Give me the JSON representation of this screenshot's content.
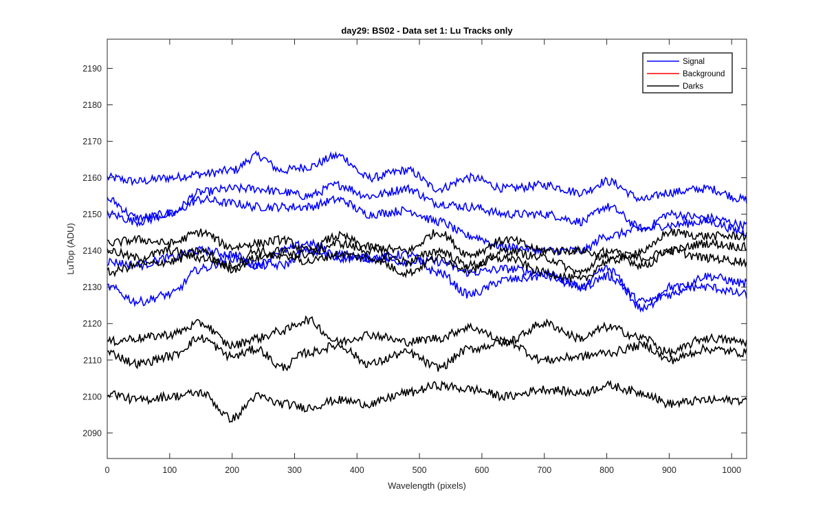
{
  "chart_data": {
    "type": "line",
    "title": "day29: BS02 - Data set 1: Lu Tracks only",
    "xlabel": "Wavelength (pixels)",
    "ylabel": "LuTop (ADU)",
    "xlim": [
      0,
      1024
    ],
    "ylim": [
      2083,
      2198
    ],
    "xticks": [
      0,
      100,
      200,
      300,
      400,
      500,
      600,
      700,
      800,
      900,
      1000
    ],
    "yticks": [
      2090,
      2100,
      2110,
      2120,
      2130,
      2140,
      2150,
      2160,
      2170,
      2180,
      2190
    ],
    "grid": false,
    "legend_position": "top-right",
    "legend": [
      {
        "label": "Signal",
        "color": "#0000ff"
      },
      {
        "label": "Background",
        "color": "#ff0000"
      },
      {
        "label": "Darks",
        "color": "#000000"
      }
    ],
    "series": [
      {
        "group": "Signal",
        "color": "#0000ff",
        "x": [
          0,
          50,
          100,
          150,
          200,
          240,
          280,
          320,
          370,
          420,
          480,
          530,
          580,
          640,
          700,
          760,
          800,
          860,
          900,
          960,
          1024
        ],
        "y": [
          2160,
          2159,
          2160,
          2161,
          2162,
          2166,
          2162,
          2163,
          2166,
          2160,
          2162,
          2157,
          2160,
          2157,
          2158,
          2156,
          2159,
          2154,
          2156,
          2157,
          2154
        ]
      },
      {
        "group": "Signal",
        "color": "#0000ff",
        "x": [
          0,
          50,
          100,
          150,
          200,
          240,
          280,
          320,
          370,
          420,
          480,
          530,
          580,
          640,
          700,
          760,
          800,
          860,
          900,
          960,
          1024
        ],
        "y": [
          2154,
          2149,
          2150,
          2156,
          2157,
          2157,
          2156,
          2155,
          2158,
          2155,
          2157,
          2153,
          2152,
          2150,
          2150,
          2148,
          2152,
          2146,
          2150,
          2149,
          2147
        ]
      },
      {
        "group": "Signal",
        "color": "#0000ff",
        "x": [
          0,
          50,
          100,
          150,
          200,
          240,
          280,
          320,
          370,
          420,
          480,
          530,
          580,
          640,
          700,
          760,
          800,
          860,
          900,
          960,
          1024
        ],
        "y": [
          2150,
          2148,
          2150,
          2154,
          2153,
          2152,
          2152,
          2152,
          2154,
          2150,
          2151,
          2148,
          2144,
          2141,
          2140,
          2140,
          2144,
          2146,
          2147,
          2148,
          2145
        ]
      },
      {
        "group": "Signal",
        "color": "#0000ff",
        "x": [
          0,
          50,
          100,
          150,
          200,
          240,
          280,
          320,
          370,
          420,
          480,
          530,
          580,
          640,
          700,
          760,
          800,
          860,
          900,
          960,
          1024
        ],
        "y": [
          2137,
          2136,
          2138,
          2140,
          2139,
          2136,
          2140,
          2142,
          2139,
          2138,
          2137,
          2137,
          2134,
          2135,
          2134,
          2130,
          2133,
          2126,
          2128,
          2133,
          2131
        ]
      },
      {
        "group": "Signal",
        "color": "#0000ff",
        "x": [
          0,
          50,
          100,
          150,
          200,
          240,
          280,
          320,
          370,
          420,
          480,
          530,
          580,
          640,
          700,
          760,
          800,
          860,
          900,
          960,
          1024
        ],
        "y": [
          2130,
          2126,
          2128,
          2135,
          2138,
          2136,
          2136,
          2140,
          2138,
          2138,
          2139,
          2134,
          2128,
          2132,
          2133,
          2130,
          2135,
          2124,
          2130,
          2130,
          2128
        ]
      },
      {
        "group": "Darks",
        "color": "#000000",
        "x": [
          0,
          50,
          100,
          150,
          200,
          240,
          280,
          320,
          370,
          420,
          480,
          530,
          580,
          640,
          700,
          760,
          800,
          860,
          900,
          960,
          1024
        ],
        "y": [
          2142,
          2143,
          2142,
          2145,
          2141,
          2142,
          2143,
          2140,
          2144,
          2141,
          2140,
          2145,
          2139,
          2143,
          2140,
          2140,
          2138,
          2138,
          2140,
          2142,
          2141
        ]
      },
      {
        "group": "Darks",
        "color": "#000000",
        "x": [
          0,
          50,
          100,
          150,
          200,
          240,
          280,
          320,
          370,
          420,
          480,
          530,
          580,
          640,
          700,
          760,
          800,
          860,
          900,
          960,
          1024
        ],
        "y": [
          2140,
          2138,
          2140,
          2138,
          2136,
          2140,
          2138,
          2139,
          2142,
          2140,
          2137,
          2140,
          2136,
          2138,
          2134,
          2132,
          2137,
          2140,
          2145,
          2144,
          2144
        ]
      },
      {
        "group": "Darks",
        "color": "#000000",
        "x": [
          0,
          50,
          100,
          150,
          200,
          240,
          280,
          320,
          370,
          420,
          480,
          530,
          580,
          640,
          700,
          760,
          800,
          860,
          900,
          960,
          1024
        ],
        "y": [
          2134,
          2136,
          2137,
          2140,
          2135,
          2138,
          2140,
          2137,
          2139,
          2138,
          2134,
          2138,
          2135,
          2140,
          2138,
          2134,
          2140,
          2136,
          2140,
          2138,
          2137
        ]
      },
      {
        "group": "Darks",
        "color": "#000000",
        "x": [
          0,
          50,
          100,
          150,
          200,
          240,
          280,
          320,
          370,
          420,
          480,
          530,
          580,
          640,
          700,
          760,
          800,
          860,
          900,
          960,
          1024
        ],
        "y": [
          2115,
          2116,
          2117,
          2120,
          2114,
          2116,
          2118,
          2121,
          2115,
          2117,
          2115,
          2116,
          2119,
          2115,
          2120,
          2116,
          2119,
          2116,
          2112,
          2116,
          2115
        ]
      },
      {
        "group": "Darks",
        "color": "#000000",
        "x": [
          0,
          50,
          100,
          150,
          200,
          240,
          280,
          320,
          370,
          420,
          480,
          530,
          580,
          640,
          700,
          760,
          800,
          860,
          900,
          960,
          1024
        ],
        "y": [
          2112,
          2109,
          2111,
          2116,
          2111,
          2113,
          2108,
          2112,
          2114,
          2109,
          2112,
          2108,
          2113,
          2115,
          2110,
          2111,
          2112,
          2114,
          2110,
          2113,
          2112
        ]
      },
      {
        "group": "Darks",
        "color": "#000000",
        "x": [
          0,
          50,
          100,
          150,
          200,
          240,
          280,
          320,
          370,
          420,
          480,
          530,
          580,
          640,
          700,
          760,
          800,
          860,
          900,
          960,
          1024
        ],
        "y": [
          2101,
          2099,
          2100,
          2101,
          2094,
          2100,
          2098,
          2097,
          2099,
          2098,
          2101,
          2103,
          2102,
          2100,
          2102,
          2101,
          2103,
          2101,
          2098,
          2099,
          2099
        ]
      }
    ]
  }
}
